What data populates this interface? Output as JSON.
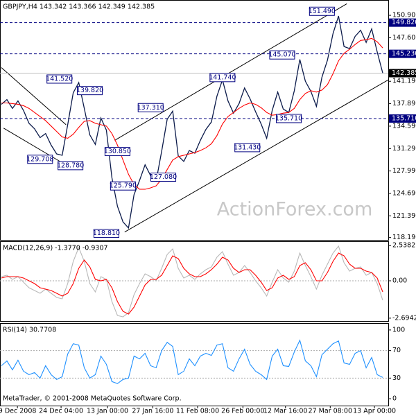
{
  "chart_data": [
    {
      "type": "line",
      "title": "GBPJPY,H4  143.342 143.366 142.349 142.385",
      "watermark": "ActionForex.com",
      "x": [
        0,
        1,
        2,
        3,
        4,
        5,
        6,
        7,
        8,
        9,
        10,
        11,
        12,
        13,
        14,
        15,
        16,
        17,
        18,
        19,
        20,
        21,
        22,
        23,
        24,
        25,
        26,
        27,
        28,
        29,
        30,
        31,
        32,
        33,
        34,
        35,
        36,
        37,
        38,
        39,
        40,
        41,
        42,
        43,
        44,
        45,
        46,
        47,
        48,
        49,
        50,
        51,
        52,
        53,
        54,
        55,
        56,
        57,
        58,
        59,
        60,
        61,
        62,
        63,
        64,
        65,
        66,
        67,
        68,
        69
      ],
      "xlim": [
        -0.25,
        70
      ],
      "ylim": [
        117.85,
        153.15
      ],
      "yticks": [
        {
          "value": 150.9,
          "label": "150.900"
        },
        {
          "value": 147.6,
          "label": "147.600"
        },
        {
          "value": 141.19,
          "label": "141.190"
        },
        {
          "value": 137.89,
          "label": "137.890"
        },
        {
          "value": 134.59,
          "label": "134.590"
        },
        {
          "value": 131.29,
          "label": "131.290"
        },
        {
          "value": 127.99,
          "label": "127.990"
        },
        {
          "value": 124.69,
          "label": "124.690"
        },
        {
          "value": 121.39,
          "label": "121.390"
        },
        {
          "value": 118.19,
          "label": "118.190"
        }
      ],
      "series": [
        {
          "name": "GBPJPY",
          "color": "#0b1a4a",
          "values": [
            137.8,
            138.5,
            137.2,
            138.3,
            136.9,
            135.0,
            134.2,
            132.9,
            133.5,
            131.8,
            130.5,
            130.3,
            134.8,
            139.5,
            141.0,
            137.2,
            133.3,
            131.9,
            135.8,
            134.0,
            127.0,
            122.8,
            120.5,
            119.6,
            124.5,
            126.6,
            128.9,
            127.3,
            126.5,
            130.9,
            135.6,
            136.8,
            130.2,
            129.4,
            131.0,
            130.6,
            132.5,
            134.1,
            135.2,
            139.0,
            141.4,
            138.3,
            136.5,
            137.9,
            140.2,
            138.6,
            136.7,
            134.9,
            132.8,
            136.9,
            139.6,
            137.1,
            136.6,
            139.8,
            144.4,
            141.2,
            139.7,
            137.5,
            141.8,
            144.3,
            148.2,
            150.8,
            146.3,
            146.0,
            147.8,
            148.7,
            146.9,
            148.9,
            145.5,
            142.4
          ]
        },
        {
          "name": "MA",
          "color": "#ff0000",
          "values": [
            138.0,
            138.0,
            137.9,
            137.8,
            137.6,
            137.2,
            136.6,
            136.0,
            135.4,
            134.6,
            133.8,
            133.0,
            132.8,
            133.4,
            134.4,
            135.3,
            135.4,
            135.0,
            134.8,
            134.6,
            133.5,
            131.8,
            129.6,
            127.5,
            126.0,
            125.3,
            125.3,
            125.5,
            125.8,
            126.8,
            128.2,
            129.6,
            130.1,
            130.3,
            130.5,
            130.7,
            131.0,
            131.4,
            132.0,
            133.2,
            134.9,
            136.0,
            136.6,
            137.2,
            137.7,
            138.0,
            137.8,
            137.3,
            136.6,
            136.2,
            136.3,
            136.5,
            136.6,
            137.2,
            138.5,
            139.4,
            139.8,
            139.6,
            139.9,
            140.7,
            142.3,
            144.2,
            145.3,
            145.9,
            146.6,
            147.2,
            147.3,
            147.5,
            147.0,
            146.1
          ]
        }
      ],
      "trendlines": [
        {
          "x": [
            20.5,
            62.5
          ],
          "y": [
            132.5,
            152.6
          ]
        },
        {
          "x": [
            22.3,
            70
          ],
          "y": [
            119.0,
            141.4
          ]
        },
        {
          "x": [
            0,
            11.7
          ],
          "y": [
            143.2,
            134.8
          ]
        },
        {
          "x": [
            0.4,
            11
          ],
          "y": [
            134.3,
            129.2
          ]
        }
      ],
      "levels": [
        {
          "value": 149.82,
          "label": "149.820"
        },
        {
          "value": 145.23,
          "label": "145.230"
        },
        {
          "value": 135.71,
          "label": "135.710"
        }
      ],
      "current": {
        "value": 142.385,
        "label": "142.385"
      },
      "annotations": [
        {
          "value": 151.49,
          "label": "151.490",
          "x": 58
        },
        {
          "value": 145.07,
          "label": "145.070",
          "x": 50.8
        },
        {
          "value": 141.74,
          "label": "141.740",
          "x": 40
        },
        {
          "value": 141.52,
          "label": "141.520",
          "x": 10.5
        },
        {
          "value": 139.82,
          "label": "139.820",
          "x": 16
        },
        {
          "value": 137.31,
          "label": "137.310",
          "x": 27
        },
        {
          "value": 135.71,
          "label": "135.710",
          "x": 52
        },
        {
          "value": 131.43,
          "label": "131.430",
          "x": 44.5
        },
        {
          "value": 130.85,
          "label": "130.850",
          "x": 21
        },
        {
          "value": 129.708,
          "label": "129.708",
          "x": 7
        },
        {
          "value": 128.78,
          "label": "128.780",
          "x": 12.5
        },
        {
          "value": 127.08,
          "label": "127.080",
          "x": 29.3
        },
        {
          "value": 125.79,
          "label": "125.790",
          "x": 22
        },
        {
          "value": 118.81,
          "label": "118.810",
          "x": 19
        }
      ]
    },
    {
      "type": "line",
      "title": "MACD(12,26,9) -1.3770 -0.9307",
      "x": [
        0,
        1,
        2,
        3,
        4,
        5,
        6,
        7,
        8,
        9,
        10,
        11,
        12,
        13,
        14,
        15,
        16,
        17,
        18,
        19,
        20,
        21,
        22,
        23,
        24,
        25,
        26,
        27,
        28,
        29,
        30,
        31,
        32,
        33,
        34,
        35,
        36,
        37,
        38,
        39,
        40,
        41,
        42,
        43,
        44,
        45,
        46,
        47,
        48,
        49,
        50,
        51,
        52,
        53,
        54,
        55,
        56,
        57,
        58,
        59,
        60,
        61,
        62,
        63,
        64,
        65,
        66,
        67,
        68,
        69
      ],
      "xlim": [
        -0.25,
        70
      ],
      "ylim": [
        -2.9,
        2.85
      ],
      "yticks": [
        2.5382,
        {
          "value": 0,
          "label": "0.00"
        },
        -2.6942
      ],
      "dotted_levels": [
        0
      ],
      "series": [
        {
          "name": "MACD",
          "color": "#b8b8b8",
          "values": [
            0.3,
            0.4,
            0.1,
            0.3,
            -0.1,
            -0.5,
            -0.7,
            -0.9,
            -0.6,
            -0.9,
            -1.2,
            -1.3,
            -0.2,
            1.4,
            2.4,
            1.4,
            -0.2,
            -0.8,
            0.3,
            0.1,
            -1.5,
            -2.5,
            -2.6,
            -2.3,
            -1.0,
            -0.2,
            0.5,
            0.3,
            0.0,
            0.9,
            1.9,
            2.3,
            0.9,
            0.2,
            0.4,
            0.1,
            0.5,
            0.8,
            1.0,
            1.7,
            2.1,
            1.2,
            0.4,
            0.6,
            1.1,
            0.6,
            0.0,
            -0.5,
            -1.1,
            -0.1,
            0.8,
            0.2,
            -0.1,
            0.7,
            2.0,
            1.1,
            0.3,
            -0.6,
            0.4,
            1.2,
            2.0,
            2.5,
            1.3,
            0.7,
            0.9,
            1.0,
            0.4,
            0.6,
            -0.2,
            -1.4
          ]
        },
        {
          "name": "Signal",
          "color": "#ff0000",
          "values": [
            0.2,
            0.3,
            0.3,
            0.3,
            0.2,
            0.0,
            -0.2,
            -0.5,
            -0.6,
            -0.7,
            -0.9,
            -1.1,
            -0.9,
            -0.2,
            0.9,
            1.5,
            1.0,
            0.1,
            0.0,
            0.1,
            -0.5,
            -1.5,
            -2.2,
            -2.4,
            -1.9,
            -1.1,
            -0.3,
            0.1,
            0.1,
            0.4,
            1.1,
            1.8,
            1.6,
            0.9,
            0.5,
            0.3,
            0.3,
            0.5,
            0.8,
            1.2,
            1.7,
            1.5,
            0.9,
            0.6,
            0.8,
            0.8,
            0.4,
            -0.1,
            -0.7,
            -0.5,
            0.2,
            0.4,
            0.1,
            0.3,
            1.1,
            1.3,
            0.8,
            0.0,
            0.0,
            0.6,
            1.4,
            2.0,
            1.8,
            1.2,
            0.9,
            0.9,
            0.7,
            0.6,
            0.2,
            -0.8
          ]
        }
      ]
    },
    {
      "type": "line",
      "title": "RSI(14) 30.7708",
      "footer": "MetaTrader, © 2001-2008 MetaQuotes Software Corp.",
      "x": [
        0,
        1,
        2,
        3,
        4,
        5,
        6,
        7,
        8,
        9,
        10,
        11,
        12,
        13,
        14,
        15,
        16,
        17,
        18,
        19,
        20,
        21,
        22,
        23,
        24,
        25,
        26,
        27,
        28,
        29,
        30,
        31,
        32,
        33,
        34,
        35,
        36,
        37,
        38,
        39,
        40,
        41,
        42,
        43,
        44,
        45,
        46,
        47,
        48,
        49,
        50,
        51,
        52,
        53,
        54,
        55,
        56,
        57,
        58,
        59,
        60,
        61,
        62,
        63,
        64,
        65,
        66,
        67,
        68,
        69
      ],
      "xlim": [
        -0.25,
        70
      ],
      "ylim": [
        -10,
        110
      ],
      "yticks": [
        100,
        70,
        30,
        0
      ],
      "dotted_levels": [
        70,
        30
      ],
      "xticks": [
        {
          "value": 2.9,
          "label": "9 Dec 2008"
        },
        {
          "value": 10.8,
          "label": "24 Dec 04:00"
        },
        {
          "value": 19.2,
          "label": "13 Jan 00:00"
        },
        {
          "value": 27.4,
          "label": "27 Jan 16:00"
        },
        {
          "value": 35.5,
          "label": "11 Feb 08:00"
        },
        {
          "value": 43.7,
          "label": "26 Feb 00:00"
        },
        {
          "value": 51.4,
          "label": "12 Mar 16:00"
        },
        {
          "value": 59.5,
          "label": "27 Mar 08:00"
        },
        {
          "value": 67.5,
          "label": "13 Apr 00:00"
        }
      ],
      "series": [
        {
          "name": "RSI",
          "color": "#1e90ff",
          "values": [
            48,
            55,
            42,
            56,
            40,
            35,
            38,
            30,
            48,
            35,
            28,
            32,
            65,
            80,
            78,
            45,
            30,
            35,
            62,
            50,
            25,
            22,
            28,
            30,
            62,
            58,
            66,
            48,
            45,
            70,
            82,
            76,
            35,
            40,
            58,
            48,
            62,
            66,
            63,
            78,
            80,
            45,
            40,
            58,
            72,
            50,
            40,
            35,
            28,
            62,
            72,
            48,
            47,
            68,
            85,
            55,
            48,
            32,
            64,
            72,
            80,
            84,
            52,
            50,
            66,
            70,
            45,
            60,
            35,
            31
          ]
        }
      ]
    }
  ]
}
